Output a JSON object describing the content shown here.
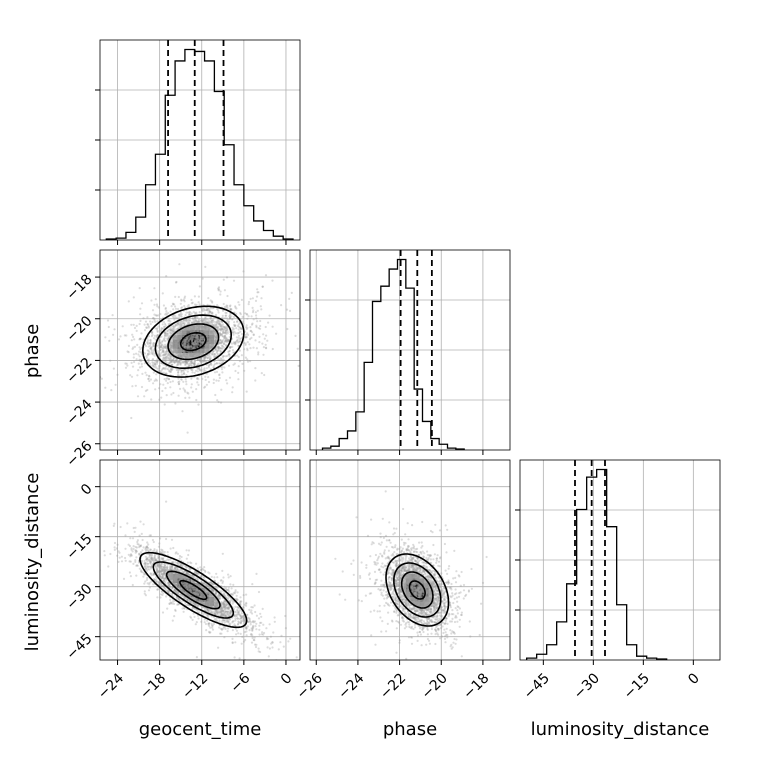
{
  "chart_data": {
    "type": "corner",
    "parameters": [
      {
        "name": "geocent_time",
        "range": [
          -26.5,
          2.0
        ],
        "ticks": [
          -24,
          -18,
          -12,
          -6,
          0
        ],
        "tick_labels": [
          "−24",
          "−18",
          "−12",
          "−6",
          "0"
        ],
        "histogram": {
          "bin_edges": [
            -25.6,
            -24.2,
            -22.8,
            -21.4,
            -20.0,
            -18.6,
            -17.2,
            -15.8,
            -14.4,
            -13.0,
            -11.6,
            -10.2,
            -8.8,
            -7.4,
            -6.0,
            -4.6,
            -3.2,
            -1.8,
            -0.4,
            1.0
          ],
          "counts": [
            0.05,
            0.1,
            0.4,
            1.2,
            2.9,
            4.5,
            7.6,
            9.4,
            10.0,
            9.9,
            9.4,
            7.8,
            5.0,
            2.9,
            1.8,
            1.0,
            0.5,
            0.2,
            0.05
          ]
        },
        "quantiles": [
          -16.8,
          -13.0,
          -8.9
        ]
      },
      {
        "name": "phase",
        "range": [
          -26.3,
          -16.7
        ],
        "ticks": [
          -26,
          -24,
          -22,
          -20,
          -18
        ],
        "tick_labels": [
          "−26",
          "−24",
          "−22",
          "−20",
          "−18"
        ],
        "histogram": {
          "bin_edges": [
            -25.7,
            -25.3,
            -24.9,
            -24.5,
            -24.1,
            -23.7,
            -23.3,
            -22.9,
            -22.5,
            -22.1,
            -21.7,
            -21.3,
            -20.9,
            -20.5,
            -20.1,
            -19.7,
            -19.3,
            -18.9
          ],
          "counts": [
            0.1,
            0.2,
            0.6,
            1.0,
            2.0,
            4.6,
            7.8,
            8.6,
            9.5,
            10.0,
            8.5,
            3.2,
            1.5,
            0.6,
            0.3,
            0.1,
            0.05
          ]
        },
        "quantiles": [
          -21.95,
          -21.15,
          -20.45
        ]
      },
      {
        "name": "luminosity_distance",
        "range": [
          -52.0,
          8.0
        ],
        "ticks": [
          -45,
          -30,
          -15,
          0
        ],
        "tick_labels": [
          "−45",
          "−30",
          "−15",
          "0"
        ],
        "y_ticks": [
          -45,
          -30,
          -15,
          0
        ],
        "y_tick_labels": [
          "−45",
          "−30",
          "−15",
          "0"
        ],
        "histogram": {
          "bin_edges": [
            -50,
            -47,
            -44,
            -41,
            -38,
            -35,
            -32,
            -29,
            -26,
            -23,
            -20,
            -17,
            -14,
            -11,
            -8
          ],
          "counts": [
            0.1,
            0.3,
            0.8,
            2.0,
            4.0,
            7.9,
            9.6,
            10.0,
            7.0,
            2.9,
            0.8,
            0.2,
            0.1,
            0.05
          ]
        },
        "quantiles": [
          -35.5,
          -30.5,
          -26.5
        ]
      }
    ],
    "pairs": [
      {
        "x_param": "geocent_time",
        "y_param": "phase",
        "center": [
          -13.2,
          -21.1
        ],
        "spread": [
          3.6,
          0.85
        ],
        "correlation": 0.25,
        "n_points": 2600
      },
      {
        "x_param": "geocent_time",
        "y_param": "luminosity_distance",
        "center": [
          -13.2,
          -31.0
        ],
        "spread": [
          3.8,
          5.6
        ],
        "correlation": -0.82,
        "n_points": 2600
      },
      {
        "x_param": "phase",
        "y_param": "luminosity_distance",
        "center": [
          -21.15,
          -31.0
        ],
        "spread": [
          0.75,
          5.4
        ],
        "correlation": -0.35,
        "n_points": 2600
      }
    ],
    "grid": true,
    "colors": {
      "line": "#000000",
      "points": "#9a9a9a",
      "grid": "#b0b0b0"
    }
  }
}
